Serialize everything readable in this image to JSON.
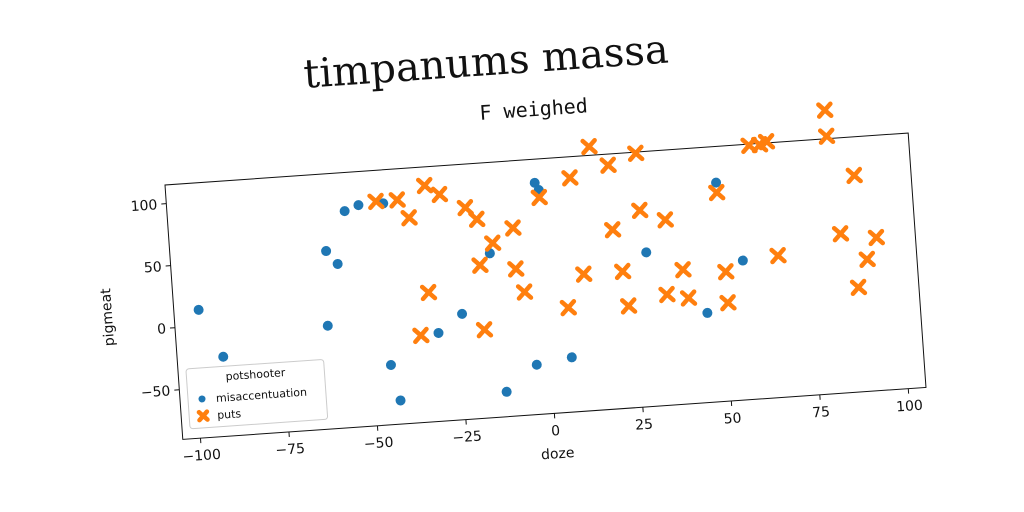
{
  "page": {
    "title": "timpanums massa"
  },
  "chart_data": {
    "type": "scatter",
    "title": "F weighed",
    "xlabel": "doze",
    "ylabel": "pigmeat",
    "xlim": [
      -105,
      105
    ],
    "ylim": [
      -90,
      115
    ],
    "xticks": [
      -100,
      -75,
      -50,
      -25,
      0,
      25,
      50,
      75,
      100
    ],
    "yticks": [
      -50,
      0,
      50,
      100
    ],
    "grid": false,
    "legend": {
      "title": "potshooter",
      "position": "bottom-left"
    },
    "series": [
      {
        "name": "misaccentuation",
        "marker": "circle",
        "color": "#1f77b4",
        "points": [
          [
            -98,
            13
          ],
          [
            -93,
            -40
          ],
          [
            -92,
            -26
          ],
          [
            -62,
            -7
          ],
          [
            -61,
            53
          ],
          [
            -58,
            42
          ],
          [
            -55,
            84
          ],
          [
            -51,
            88
          ],
          [
            -44,
            88
          ],
          [
            -45,
            -42
          ],
          [
            -43,
            -71
          ],
          [
            -31,
            -19
          ],
          [
            -24,
            -5
          ],
          [
            -15,
            42
          ],
          [
            -13,
            -70
          ],
          [
            -4,
            -50
          ],
          [
            -1,
            96
          ],
          [
            0,
            90
          ],
          [
            6,
            -46
          ],
          [
            29,
            34
          ],
          [
            45,
            -18
          ],
          [
            50,
            86
          ],
          [
            56,
            22
          ]
        ]
      },
      {
        "name": "puts",
        "marker": "x",
        "color": "#ff7f0e",
        "points": [
          [
            -46,
            90
          ],
          [
            -40,
            90
          ],
          [
            -37,
            75
          ],
          [
            -36,
            -20
          ],
          [
            -33,
            14
          ],
          [
            -32,
            100
          ],
          [
            -28,
            92
          ],
          [
            -21,
            80
          ],
          [
            -18,
            70
          ],
          [
            -18,
            33
          ],
          [
            -18,
            -19
          ],
          [
            -14,
            50
          ],
          [
            -8,
            61
          ],
          [
            -8,
            28
          ],
          [
            -6,
            9
          ],
          [
            0,
            84
          ],
          [
            6,
            -6
          ],
          [
            9,
            98
          ],
          [
            11,
            20
          ],
          [
            15,
            122
          ],
          [
            20,
            106
          ],
          [
            20,
            54
          ],
          [
            22,
            20
          ],
          [
            23,
            -8
          ],
          [
            28,
            114
          ],
          [
            28,
            68
          ],
          [
            34,
            -1
          ],
          [
            35,
            59
          ],
          [
            39,
            18
          ],
          [
            40,
            -5
          ],
          [
            50,
            78
          ],
          [
            51,
            14
          ],
          [
            51,
            -11
          ],
          [
            60,
            114
          ],
          [
            63,
            114
          ],
          [
            65,
            116
          ],
          [
            66,
            24
          ],
          [
            82,
            138
          ],
          [
            82,
            117
          ],
          [
            84,
            38
          ],
          [
            88,
            -6
          ],
          [
            89,
            84
          ],
          [
            91,
            16
          ],
          [
            94,
            33
          ]
        ]
      }
    ]
  }
}
